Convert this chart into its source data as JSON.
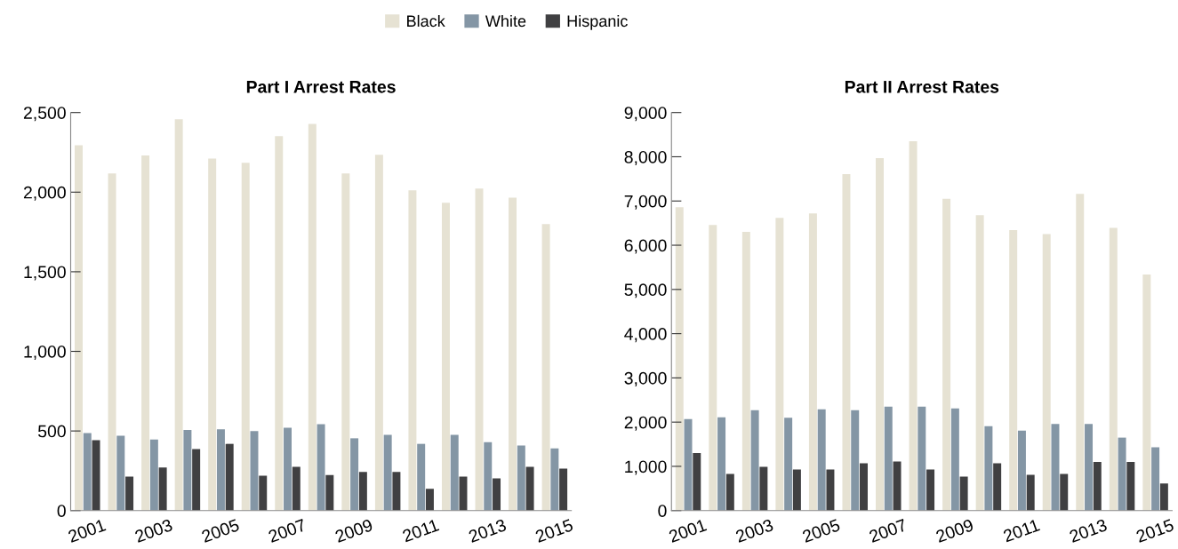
{
  "chart_data": [
    {
      "type": "bar",
      "title": "Part I Arrest Rates",
      "categories": [
        "2001",
        null,
        "2003",
        null,
        "2005",
        null,
        "2007",
        null,
        "2009",
        null,
        "2011",
        null,
        "2013",
        null,
        "2015"
      ],
      "series": [
        {
          "name": "Black",
          "color": "#e6e2d3",
          "values": [
            2295,
            2117,
            2230,
            2458,
            2211,
            2185,
            2352,
            2429,
            2117,
            2234,
            2011,
            1933,
            2023,
            1966,
            1799
          ]
        },
        {
          "name": "White",
          "color": "#8496a5",
          "values": [
            487,
            470,
            447,
            506,
            510,
            499,
            520,
            543,
            454,
            475,
            419,
            475,
            430,
            409,
            390
          ]
        },
        {
          "name": "Hispanic",
          "color": "#404042",
          "values": [
            442,
            214,
            270,
            386,
            419,
            219,
            275,
            223,
            242,
            242,
            136,
            214,
            202,
            275,
            263
          ]
        }
      ],
      "ylim": [
        0,
        2500
      ],
      "yticks": [
        0,
        {
          "value": 500,
          "label": "500"
        },
        {
          "value": 1000,
          "label": "1,000"
        },
        {
          "value": 1500,
          "label": "1,500"
        },
        {
          "value": 2000,
          "label": "2,000"
        },
        {
          "value": 2500,
          "label": "2,500"
        }
      ],
      "grid": false,
      "legend": "top"
    },
    {
      "type": "bar",
      "title": "Part II Arrest Rates",
      "categories": [
        "2001",
        null,
        "2003",
        null,
        "2005",
        null,
        "2007",
        null,
        "2009",
        null,
        "2011",
        null,
        "2013",
        null,
        "2015"
      ],
      "series": [
        {
          "name": "Black",
          "color": "#e6e2d3",
          "values": [
            6860,
            6460,
            6300,
            6620,
            6720,
            7610,
            7970,
            8350,
            7050,
            6680,
            6340,
            6250,
            7160,
            6390,
            5340
          ]
        },
        {
          "name": "White",
          "color": "#8496a5",
          "values": [
            2070,
            2110,
            2270,
            2100,
            2290,
            2270,
            2350,
            2350,
            2310,
            1910,
            1810,
            1960,
            1960,
            1650,
            1430
          ]
        },
        {
          "name": "Hispanic",
          "color": "#404042",
          "values": [
            1300,
            830,
            990,
            930,
            930,
            1070,
            1110,
            930,
            770,
            1070,
            810,
            830,
            1100,
            1100,
            610
          ]
        }
      ],
      "ylim": [
        0,
        9000
      ],
      "yticks": [
        0,
        {
          "value": 1000,
          "label": "1,000"
        },
        {
          "value": 2000,
          "label": "2,000"
        },
        {
          "value": 3000,
          "label": "3,000"
        },
        {
          "value": 4000,
          "label": "4,000"
        },
        {
          "value": 5000,
          "label": "5,000"
        },
        {
          "value": 6000,
          "label": "6,000"
        },
        {
          "value": 7000,
          "label": "7,000"
        },
        {
          "value": 8000,
          "label": "8,000"
        },
        {
          "value": 9000,
          "label": "9,000"
        }
      ],
      "grid": false,
      "legend": "top"
    }
  ]
}
